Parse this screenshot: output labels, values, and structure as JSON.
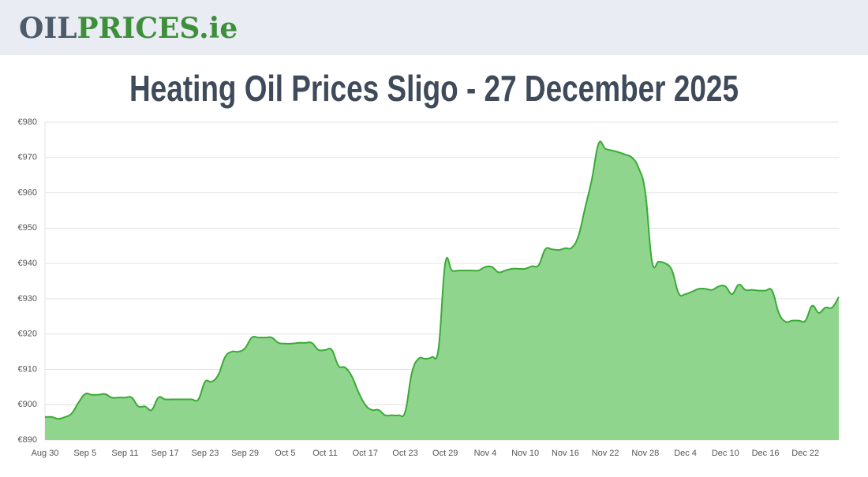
{
  "header": {
    "logo_dark": "OIL",
    "logo_green": "PRICES.ie"
  },
  "chart_data": {
    "type": "area",
    "title": "Heating Oil Prices Sligo - 27 December 2025",
    "categories": [
      "Aug 30",
      null,
      null,
      null,
      null,
      null,
      "Sep 5",
      null,
      null,
      null,
      null,
      null,
      "Sep 11",
      null,
      null,
      null,
      null,
      null,
      "Sep 17",
      null,
      null,
      null,
      null,
      null,
      "Sep 23",
      null,
      null,
      null,
      null,
      null,
      "Sep 29",
      null,
      null,
      null,
      null,
      null,
      "Oct 5",
      null,
      null,
      null,
      null,
      null,
      "Oct 11",
      null,
      null,
      null,
      null,
      null,
      "Oct 17",
      null,
      null,
      null,
      null,
      null,
      "Oct 23",
      null,
      null,
      null,
      null,
      null,
      "Oct 29",
      null,
      null,
      null,
      null,
      null,
      "Nov 4",
      null,
      null,
      null,
      null,
      null,
      "Nov 10",
      null,
      null,
      null,
      null,
      null,
      "Nov 16",
      null,
      null,
      null,
      null,
      null,
      "Nov 22",
      null,
      null,
      null,
      null,
      null,
      "Nov 28",
      null,
      null,
      null,
      null,
      null,
      "Dec 4",
      null,
      null,
      null,
      null,
      null,
      "Dec 10",
      null,
      null,
      null,
      null,
      null,
      "Dec 16",
      null,
      null,
      null,
      null,
      null,
      "Dec 22",
      null,
      null,
      null,
      null,
      null
    ],
    "values": [
      896.5,
      896.5,
      896,
      896.5,
      897.5,
      900.5,
      903,
      902.8,
      902.8,
      903,
      902,
      902,
      902,
      902,
      899.5,
      899.5,
      898.5,
      902,
      901.5,
      901.5,
      901.5,
      901.5,
      901.5,
      901.5,
      906.5,
      906.5,
      908.5,
      913.5,
      915,
      915,
      916,
      919,
      919,
      919,
      919,
      917.5,
      917.3,
      917.3,
      917.5,
      917.5,
      917.5,
      915.5,
      915.5,
      915.5,
      911,
      910.5,
      908,
      903.5,
      900,
      898.5,
      898.5,
      897,
      897,
      897,
      898,
      909,
      913,
      913,
      913.5,
      916,
      940,
      938,
      938,
      938,
      938,
      938,
      939,
      939,
      937.5,
      938,
      938.5,
      938.5,
      938.5,
      939.2,
      939.5,
      944,
      944,
      943.8,
      944.3,
      944.5,
      948,
      956,
      964,
      974,
      972.5,
      972,
      971.5,
      970.8,
      970,
      967,
      960,
      940.5,
      940.5,
      940,
      938,
      931.5,
      931.3,
      932,
      932.8,
      932.8,
      932.5,
      933.5,
      933.5,
      931.3,
      934,
      932.5,
      932.5,
      932.3,
      932.3,
      932.3,
      926,
      923.5,
      923.8,
      923.8,
      923.8,
      928,
      926,
      927.5,
      927.5,
      930.5
    ],
    "color": "#3aaa35",
    "fill": "#90d58e",
    "ylim": [
      890,
      980
    ],
    "yticks": [
      {
        "value": 890,
        "label": "€890"
      },
      {
        "value": 900,
        "label": "€900"
      },
      {
        "value": 910,
        "label": "€910"
      },
      {
        "value": 920,
        "label": "€920"
      },
      {
        "value": 930,
        "label": "€930"
      },
      {
        "value": 940,
        "label": "€940"
      },
      {
        "value": 950,
        "label": "€950"
      },
      {
        "value": 960,
        "label": "€960"
      },
      {
        "value": 970,
        "label": "€970"
      },
      {
        "value": 980,
        "label": "€980"
      }
    ],
    "grid": true
  }
}
